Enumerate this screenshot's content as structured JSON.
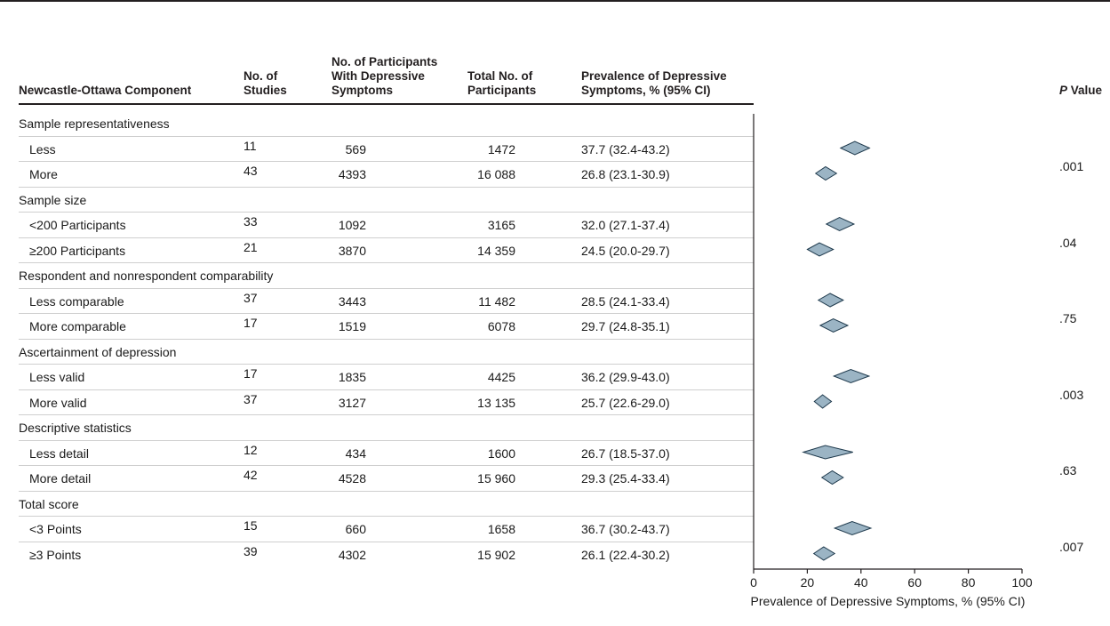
{
  "headers": {
    "component": "Newcastle-Ottawa Component",
    "studies_l1": "No. of",
    "studies_l2": "Studies",
    "participants_dep_l1": "No. of Participants",
    "participants_dep_l2": "With Depressive",
    "participants_dep_l3": "Symptoms",
    "total_l1": "Total No. of",
    "total_l2": "Participants",
    "prevalence_l1": "Prevalence of Depressive",
    "prevalence_l2": "Symptoms, % (95% CI)",
    "pvalue_p": "P",
    "pvalue_rest": " Value"
  },
  "groups": [
    {
      "title": "Sample representativeness",
      "p_value": ".001",
      "rows": [
        {
          "label": "Less",
          "studies": "11",
          "dep": "569",
          "total": "1472",
          "prev_text": "37.7 (32.4-43.2)"
        },
        {
          "label": "More",
          "studies": "43",
          "dep": "4393",
          "total": "16 088",
          "prev_text": "26.8 (23.1-30.9)"
        }
      ]
    },
    {
      "title": "Sample size",
      "p_value": ".04",
      "rows": [
        {
          "label": "<200 Participants",
          "studies": "33",
          "dep": "1092",
          "total": "3165",
          "prev_text": "32.0 (27.1-37.4)"
        },
        {
          "label": "≥200 Participants",
          "studies": "21",
          "dep": "3870",
          "total": "14 359",
          "prev_text": "24.5 (20.0-29.7)"
        }
      ]
    },
    {
      "title": "Respondent and nonrespondent comparability",
      "p_value": ".75",
      "rows": [
        {
          "label": "Less comparable",
          "studies": "37",
          "dep": "3443",
          "total": "11 482",
          "prev_text": "28.5 (24.1-33.4)"
        },
        {
          "label": "More comparable",
          "studies": "17",
          "dep": "1519",
          "total": "6078",
          "prev_text": "29.7 (24.8-35.1)"
        }
      ]
    },
    {
      "title": "Ascertainment of depression",
      "p_value": ".003",
      "rows": [
        {
          "label": "Less valid",
          "studies": "17",
          "dep": "1835",
          "total": "4425",
          "prev_text": "36.2 (29.9-43.0)"
        },
        {
          "label": "More valid",
          "studies": "37",
          "dep": "3127",
          "total": "13 135",
          "prev_text": "25.7 (22.6-29.0)"
        }
      ]
    },
    {
      "title": "Descriptive statistics",
      "p_value": ".63",
      "rows": [
        {
          "label": "Less detail",
          "studies": "12",
          "dep": "434",
          "total": "1600",
          "prev_text": "26.7 (18.5-37.0)"
        },
        {
          "label": "More detail",
          "studies": "42",
          "dep": "4528",
          "total": "15 960",
          "prev_text": "29.3 (25.4-33.4)"
        }
      ]
    },
    {
      "title": "Total score",
      "p_value": ".007",
      "rows": [
        {
          "label": "<3 Points",
          "studies": "15",
          "dep": "660",
          "total": "1658",
          "prev_text": "36.7 (30.2-43.7)"
        },
        {
          "label": "≥3 Points",
          "studies": "39",
          "dep": "4302",
          "total": "15 902",
          "prev_text": "26.1 (22.4-30.2)"
        }
      ]
    }
  ],
  "chart_data": {
    "type": "scatter",
    "subtype": "forest-plot-diamonds",
    "xlabel": "Prevalence of Depressive Symptoms, % (95% CI)",
    "ylabel": "",
    "xlim": [
      0,
      100
    ],
    "xticks": [
      0,
      20,
      40,
      60,
      80,
      100
    ],
    "grid": false,
    "diamond_color": "#9bb4c4",
    "diamond_stroke": "#1f3a4d",
    "categories": [
      "Sample representativeness: Less",
      "Sample representativeness: More",
      "Sample size: <200 Participants",
      "Sample size: ≥200 Participants",
      "Respondent and nonrespondent comparability: Less comparable",
      "Respondent and nonrespondent comparability: More comparable",
      "Ascertainment of depression: Less valid",
      "Ascertainment of depression: More valid",
      "Descriptive statistics: Less detail",
      "Descriptive statistics: More detail",
      "Total score: <3 Points",
      "Total score: ≥3 Points"
    ],
    "estimates": [
      37.7,
      26.8,
      32.0,
      24.5,
      28.5,
      29.7,
      36.2,
      25.7,
      26.7,
      29.3,
      36.7,
      26.1
    ],
    "ci_lower": [
      32.4,
      23.1,
      27.1,
      20.0,
      24.1,
      24.8,
      29.9,
      22.6,
      18.5,
      25.4,
      30.2,
      22.4
    ],
    "ci_upper": [
      43.2,
      30.9,
      37.4,
      29.7,
      33.4,
      35.1,
      43.0,
      29.0,
      37.0,
      33.4,
      43.7,
      30.2
    ]
  }
}
